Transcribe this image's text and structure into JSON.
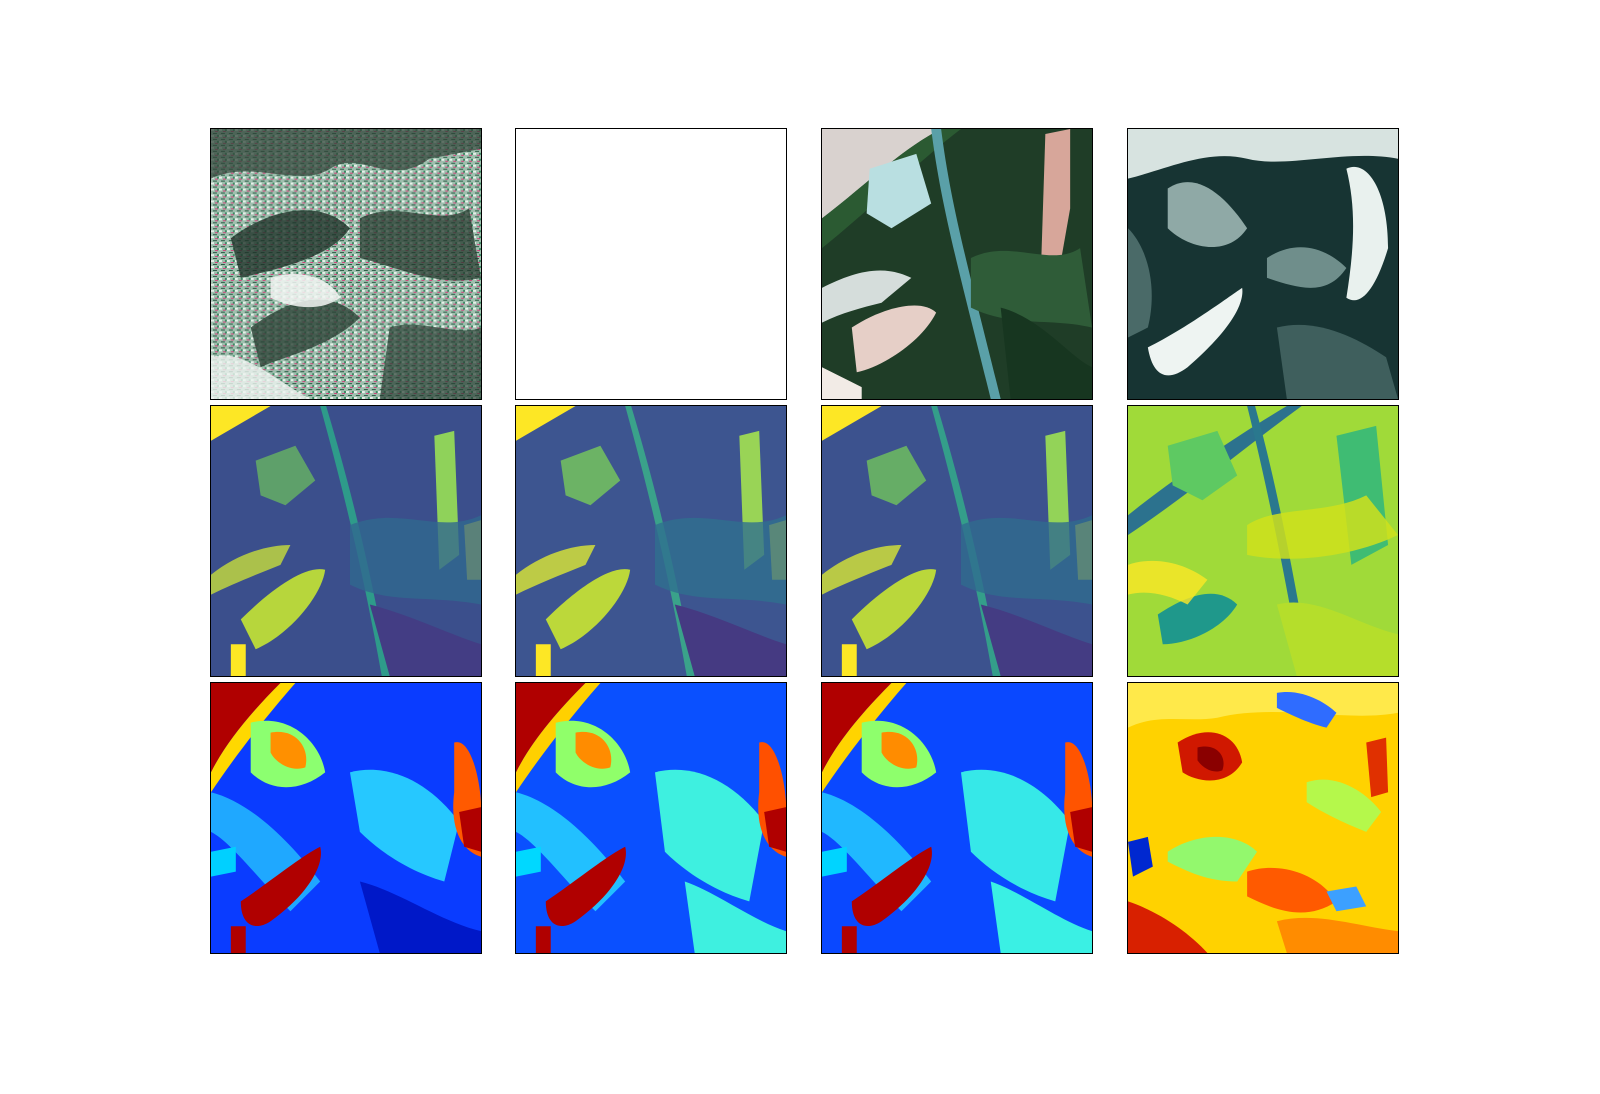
{
  "figure": {
    "rows": 3,
    "cols": 4,
    "panels": [
      {
        "row": 0,
        "col": 0,
        "content": "sar-false-color",
        "palette": [
          "#1a2a22",
          "#4a7a5e",
          "#e8f0ea",
          "#d0407a"
        ]
      },
      {
        "row": 0,
        "col": 1,
        "content": "blank",
        "palette": [
          "#ffffff"
        ]
      },
      {
        "row": 0,
        "col": 2,
        "content": "optical-rgb",
        "palette": [
          "#12261a",
          "#2f5536",
          "#e8d6cc",
          "#b8e0e2"
        ]
      },
      {
        "row": 0,
        "col": 3,
        "content": "reconstructed-rgb",
        "palette": [
          "#0e2626",
          "#5a7e7a",
          "#e6eeea"
        ]
      },
      {
        "row": 1,
        "col": 0,
        "content": "viridis-map",
        "palette": [
          "#440154",
          "#3b528b",
          "#21918c",
          "#5ec962",
          "#fde725"
        ]
      },
      {
        "row": 1,
        "col": 1,
        "content": "viridis-map",
        "palette": [
          "#440154",
          "#3b528b",
          "#21918c",
          "#5ec962",
          "#fde725"
        ]
      },
      {
        "row": 1,
        "col": 2,
        "content": "viridis-map",
        "palette": [
          "#440154",
          "#3b528b",
          "#21918c",
          "#5ec962",
          "#fde725"
        ]
      },
      {
        "row": 1,
        "col": 3,
        "content": "viridis-map",
        "palette": [
          "#3b528b",
          "#21918c",
          "#5ec962",
          "#b5de2b",
          "#fde725"
        ]
      },
      {
        "row": 2,
        "col": 0,
        "content": "jet-map",
        "palette": [
          "#00007f",
          "#0040ff",
          "#00c0ff",
          "#80ff80",
          "#ff8000",
          "#b00000"
        ]
      },
      {
        "row": 2,
        "col": 1,
        "content": "jet-map",
        "palette": [
          "#00007f",
          "#0040ff",
          "#00e0e0",
          "#80ff80",
          "#ff8000",
          "#b00000"
        ]
      },
      {
        "row": 2,
        "col": 2,
        "content": "jet-map",
        "palette": [
          "#00007f",
          "#0040ff",
          "#00e0e0",
          "#80ff80",
          "#ff8000",
          "#b00000"
        ]
      },
      {
        "row": 2,
        "col": 3,
        "content": "jet-map",
        "palette": [
          "#0040ff",
          "#00c0ff",
          "#80ff80",
          "#ffe000",
          "#ff6000",
          "#c00000"
        ]
      }
    ]
  }
}
